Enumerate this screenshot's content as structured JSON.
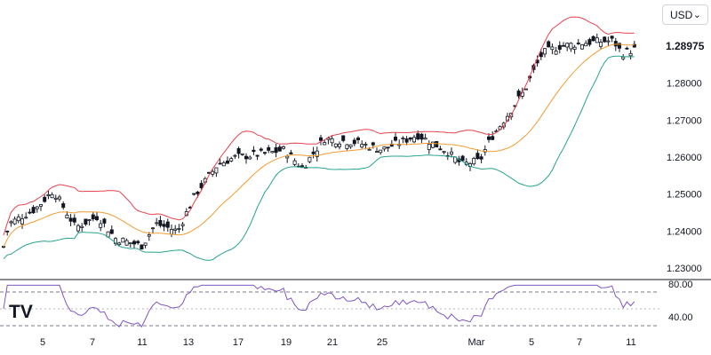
{
  "currency_selector": {
    "label": "USD",
    "chevron": "⌄"
  },
  "logo": {
    "text": "TV"
  },
  "last_price": {
    "text": "1.28975"
  },
  "colors": {
    "upper_band": "#e5434f",
    "basis": "#f39c32",
    "lower_band": "#26a38f",
    "rsi": "#7e57c2",
    "candle": "#131722"
  },
  "chart_data": [
    {
      "type": "candlestick",
      "title": "",
      "overlays": [
        "upper_band",
        "basis",
        "lower_band"
      ],
      "y_ticks": [
        "1.29000",
        "1.28000",
        "1.27000",
        "1.26000",
        "1.25000",
        "1.24000",
        "1.23000"
      ],
      "x_ticks": [
        "5",
        "7",
        "11",
        "13",
        "17",
        "19",
        "21",
        "25",
        "Mar",
        "5",
        "7",
        "11"
      ],
      "ylim": [
        1.2278,
        1.2998
      ],
      "last_price": 1.28975,
      "grid": false
    },
    {
      "type": "line",
      "series": [
        {
          "name": "",
          "values": []
        }
      ],
      "y_ticks": [
        "80.00",
        "40.00"
      ],
      "ylim": [
        20,
        80
      ],
      "levels": [
        70,
        30
      ],
      "grid": false
    }
  ]
}
